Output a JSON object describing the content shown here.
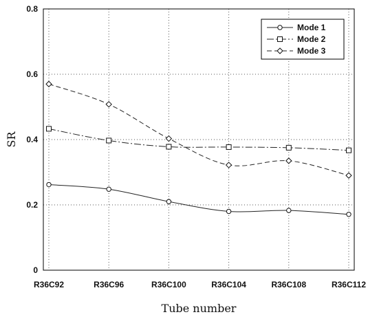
{
  "chart_data": {
    "type": "line",
    "title": "",
    "xlabel": "Tube number",
    "ylabel": "SR",
    "categories": [
      "R36C92",
      "R36C96",
      "R36C100",
      "R36C104",
      "R36C108",
      "R36C112"
    ],
    "ylim": [
      0,
      0.8
    ],
    "yticks": [
      "0",
      "0.2",
      "0.4",
      "0.6",
      "0.8"
    ],
    "grid": "dotted",
    "legend_position": "top-right",
    "series": [
      {
        "name": "Mode 1",
        "marker": "circle",
        "line_style": "solid",
        "values": [
          0.262,
          0.248,
          0.21,
          0.18,
          0.183,
          0.171
        ]
      },
      {
        "name": "Mode 2",
        "marker": "square",
        "line_style": "dash-dot",
        "values": [
          0.433,
          0.397,
          0.378,
          0.377,
          0.375,
          0.367
        ]
      },
      {
        "name": "Mode 3",
        "marker": "diamond",
        "line_style": "dashed",
        "values": [
          0.57,
          0.508,
          0.403,
          0.322,
          0.335,
          0.29
        ]
      }
    ]
  }
}
